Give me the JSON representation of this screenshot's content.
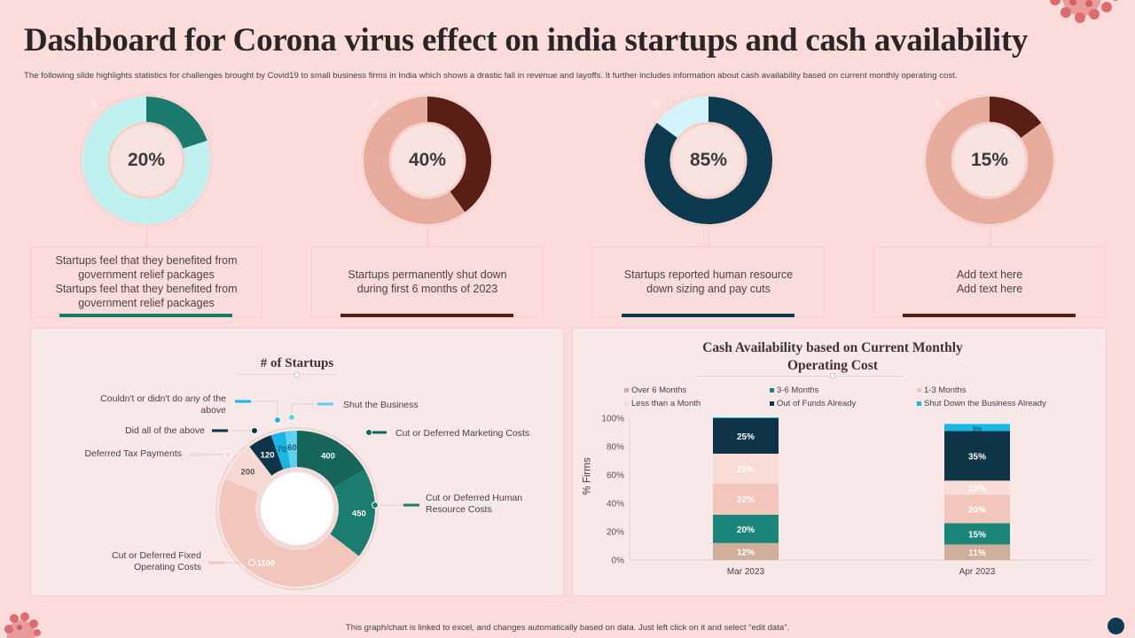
{
  "header": {
    "title": "Dashboard for Corona virus effect on india startups and cash availability",
    "subtitle": "The following slide highlights statistics for challenges brought by Covid19 to small business firms in India which shows a drastic fall in revenue and layoffs. It further includes information about cash availability based on current monthly operating cost."
  },
  "kpis": [
    {
      "value": 20,
      "label": "20%",
      "text_lines": [
        "Startups feel that they benefited from",
        "government relief packages",
        "Startups feel that they benefited from",
        "government relief packages"
      ],
      "fill_color": "#1a7a6e",
      "track_color": "#bff2ee",
      "bar_color": "#1a7a6e"
    },
    {
      "value": 40,
      "label": "40%",
      "text_lines": [
        "Startups permanently shut down",
        "during first 6 months of 2023"
      ],
      "fill_color": "#5a1f14",
      "track_color": "#e7ac9c",
      "bar_color": "#5a1f14"
    },
    {
      "value": 85,
      "label": "85%",
      "text_lines": [
        "Startups reported human resource",
        "down sizing and pay cuts"
      ],
      "fill_color": "#0e3a4f",
      "track_color": "#d3f4fb",
      "bar_color": "#0e3a4f"
    },
    {
      "value": 15,
      "label": "15%",
      "text_lines": [
        "Add text here",
        "Add text here"
      ],
      "fill_color": "#5a1f14",
      "track_color": "#e7ac9c",
      "bar_color": "#5a1f14"
    }
  ],
  "footer": {
    "note": "This graph/chart is linked to excel, and changes automatically based on data. Just left click on it and select “edit data”."
  },
  "chart_data": [
    {
      "type": "pie",
      "variant": "donut",
      "title": "# of Startups",
      "slices": [
        {
          "label": "Cut or Deferred Marketing Costs",
          "value": 400,
          "color": "#17665c"
        },
        {
          "label": "Cut or Deferred Human Resource Costs",
          "value": 450,
          "color": "#1b7c70"
        },
        {
          "label": "Cut or Deferred Fixed Operating Costs",
          "value": 1100,
          "color": "#f2c6bb"
        },
        {
          "label": "Deferred Tax Payments",
          "value": 200,
          "color": "#f6d9d2"
        },
        {
          "label": "Did all of the above",
          "value": 120,
          "color": "#0e3547"
        },
        {
          "label": "Couldn't or didn't do any of the above",
          "value": 70,
          "color": "#17b6e3"
        },
        {
          "label": "Shut the Business",
          "value": 60,
          "color": "#5fd1ef"
        }
      ]
    },
    {
      "type": "bar",
      "stacked": true,
      "title": "Cash Availability based on Current Monthly Operating Cost",
      "xlabel": "",
      "ylabel": "% Firms",
      "ylim": [
        0,
        100
      ],
      "yticks": [
        "0%",
        "20%",
        "40%",
        "60%",
        "80%",
        "100%"
      ],
      "categories": [
        "Mar 2023",
        "Apr 2023"
      ],
      "legend_position": "top",
      "series": [
        {
          "name": "Over 6 Months",
          "color": "#d1ae9a",
          "values": [
            12,
            11
          ]
        },
        {
          "name": "3-6 Months",
          "color": "#1b8579",
          "values": [
            20,
            15
          ]
        },
        {
          "name": "1-3 Months",
          "color": "#f2c6bb",
          "values": [
            22,
            20
          ]
        },
        {
          "name": "Less than a Month",
          "color": "#f8dcd5",
          "values": [
            21,
            10
          ]
        },
        {
          "name": "Out of Funds Already",
          "color": "#0e3547",
          "values": [
            25,
            35
          ]
        },
        {
          "name": "Shut Down the Business Already",
          "color": "#1ab8e6",
          "values": [
            0,
            5
          ]
        }
      ],
      "data_labels": [
        [
          "12%",
          "20%",
          "22%",
          "21%",
          "25%",
          ""
        ],
        [
          "11%",
          "15%",
          "20%",
          "10%",
          "35%",
          "5%"
        ]
      ]
    }
  ]
}
